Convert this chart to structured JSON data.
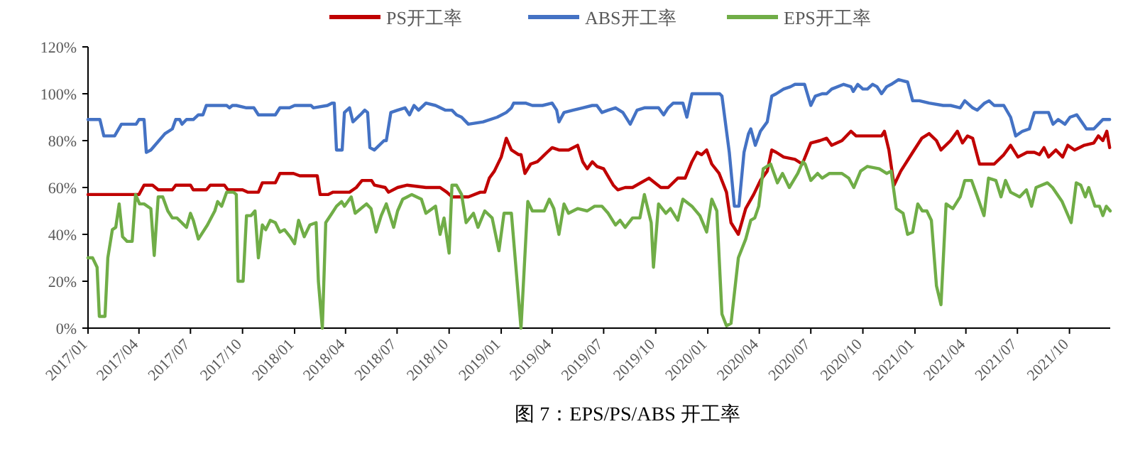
{
  "chart_data": {
    "type": "line",
    "title": "图 7：EPS/PS/ABS 开工率",
    "legend": "top",
    "xlim": [
      "2017-01-01",
      "2021-12-12"
    ],
    "xticks": [
      {
        "value": "2017-01",
        "label": "2017/01"
      },
      {
        "value": "2017-04",
        "label": "2017/04"
      },
      {
        "value": "2017-07",
        "label": "2017/07"
      },
      {
        "value": "2017-10",
        "label": "2017/10"
      },
      {
        "value": "2018-01",
        "label": "2018/01"
      },
      {
        "value": "2018-04",
        "label": "2018/04"
      },
      {
        "value": "2018-07",
        "label": "2018/07"
      },
      {
        "value": "2018-10",
        "label": "2018/10"
      },
      {
        "value": "2019-01",
        "label": "2019/01"
      },
      {
        "value": "2019-04",
        "label": "2019/04"
      },
      {
        "value": "2019-07",
        "label": "2019/07"
      },
      {
        "value": "2019-10",
        "label": "2019/10"
      },
      {
        "value": "2020-01",
        "label": "2020/01"
      },
      {
        "value": "2020-04",
        "label": "2020/04"
      },
      {
        "value": "2020-07",
        "label": "2020/07"
      },
      {
        "value": "2020-10",
        "label": "2020/10"
      },
      {
        "value": "2021-01",
        "label": "2021/01"
      },
      {
        "value": "2021-04",
        "label": "2021/04"
      },
      {
        "value": "2021-07",
        "label": "2021/07"
      },
      {
        "value": "2021-10",
        "label": "2021/10"
      }
    ],
    "ylim": [
      0,
      120
    ],
    "yticks": [
      {
        "value": 0,
        "label": "0%"
      },
      {
        "value": 20,
        "label": "20%"
      },
      {
        "value": 40,
        "label": "40%"
      },
      {
        "value": 60,
        "label": "60%"
      },
      {
        "value": 80,
        "label": "80%"
      },
      {
        "value": 100,
        "label": "100%"
      },
      {
        "value": 120,
        "label": "120%"
      }
    ],
    "series": [
      {
        "name": "PS开工率",
        "color": "#c00000",
        "x": [
          "2017-01-01",
          "2017-04-01",
          "2017-04-10",
          "2017-04-25",
          "2017-05-05",
          "2017-05-30",
          "2017-06-05",
          "2017-07-01",
          "2017-07-06",
          "2017-07-29",
          "2017-08-05",
          "2017-08-30",
          "2017-09-05",
          "2017-10-01",
          "2017-10-10",
          "2017-10-29",
          "2017-11-05",
          "2017-11-28",
          "2017-12-06",
          "2017-12-30",
          "2018-01-10",
          "2018-02-10",
          "2018-02-15",
          "2018-03-01",
          "2018-03-10",
          "2018-04-08",
          "2018-04-20",
          "2018-04-30",
          "2018-05-17",
          "2018-05-22",
          "2018-06-10",
          "2018-06-16",
          "2018-07-02",
          "2018-07-19",
          "2018-08-21",
          "2018-09-15",
          "2018-09-27",
          "2018-10-06",
          "2018-11-04",
          "2018-11-25",
          "2018-12-03",
          "2018-12-11",
          "2018-12-20",
          "2019-01-01",
          "2019-01-10",
          "2019-01-19",
          "2019-02-01",
          "2019-02-05",
          "2019-02-12",
          "2019-02-22",
          "2019-03-06",
          "2019-03-23",
          "2019-04-01",
          "2019-04-13",
          "2019-04-30",
          "2019-05-16",
          "2019-05-25",
          "2019-06-02",
          "2019-06-11",
          "2019-06-19",
          "2019-07-01",
          "2019-07-18",
          "2019-07-26",
          "2019-08-08",
          "2019-08-21",
          "2019-09-19",
          "2019-10-10",
          "2019-10-23",
          "2019-11-09",
          "2019-11-22",
          "2019-12-04",
          "2019-12-13",
          "2019-12-21",
          "2019-12-30",
          "2020-01-08",
          "2020-01-21",
          "2020-02-03",
          "2020-02-11",
          "2020-02-24",
          "2020-03-08",
          "2020-03-22",
          "2020-04-03",
          "2020-04-15",
          "2020-04-23",
          "2020-05-01",
          "2020-05-14",
          "2020-06-03",
          "2020-06-16",
          "2020-07-01",
          "2020-07-17",
          "2020-07-29",
          "2020-08-07",
          "2020-08-25",
          "2020-09-10",
          "2020-09-19",
          "2020-10-05",
          "2020-11-03",
          "2020-11-08",
          "2020-11-16",
          "2020-11-25",
          "2020-12-07",
          "2020-12-28",
          "2021-01-13",
          "2021-01-26",
          "2021-02-08",
          "2021-02-16",
          "2021-03-05",
          "2021-03-17",
          "2021-03-26",
          "2021-04-04",
          "2021-04-13",
          "2021-04-25",
          "2021-05-08",
          "2021-05-21",
          "2021-06-07",
          "2021-06-19",
          "2021-07-02",
          "2021-07-18",
          "2021-07-31",
          "2021-08-09",
          "2021-08-17",
          "2021-08-25",
          "2021-09-07",
          "2021-09-19",
          "2021-09-28",
          "2021-10-10",
          "2021-10-27",
          "2021-11-13",
          "2021-11-21",
          "2021-11-29",
          "2021-12-06",
          "2021-12-11"
        ],
        "values": [
          57,
          57,
          61,
          61,
          59,
          59,
          61,
          61,
          59,
          59,
          61,
          61,
          59,
          59,
          58,
          58,
          62,
          62,
          66,
          66,
          65,
          65,
          57,
          57,
          58,
          58,
          60,
          63,
          63,
          61,
          60,
          58,
          60,
          61,
          60,
          60,
          58,
          56,
          56,
          58,
          58,
          64,
          67,
          73,
          81,
          76,
          74,
          74,
          66,
          70,
          71,
          75,
          77,
          76,
          76,
          78,
          71,
          68,
          71,
          69,
          68,
          61,
          59,
          60,
          60,
          64,
          60,
          60,
          64,
          64,
          71,
          75,
          74,
          76,
          70,
          66,
          58,
          45,
          40,
          51,
          57,
          63,
          67,
          76,
          75,
          73,
          72,
          70,
          79,
          80,
          81,
          78,
          80,
          84,
          82,
          82,
          82,
          84,
          76,
          61,
          67,
          75,
          81,
          83,
          80,
          76,
          80,
          84,
          79,
          82,
          81,
          70,
          70,
          70,
          74,
          78,
          73,
          75,
          75,
          74,
          77,
          73,
          76,
          73,
          78,
          76,
          78,
          79,
          82,
          80,
          84,
          77
        ]
      },
      {
        "name": "ABS开工率",
        "color": "#4472c4",
        "x": [
          "2017-01-01",
          "2017-01-22",
          "2017-01-29",
          "2017-02-17",
          "2017-03-01",
          "2017-03-27",
          "2017-04-01",
          "2017-04-10",
          "2017-04-14",
          "2017-04-22",
          "2017-05-17",
          "2017-05-30",
          "2017-06-05",
          "2017-06-12",
          "2017-06-16",
          "2017-06-24",
          "2017-07-06",
          "2017-07-15",
          "2017-07-23",
          "2017-07-29",
          "2017-09-03",
          "2017-09-08",
          "2017-09-13",
          "2017-09-20",
          "2017-10-08",
          "2017-10-21",
          "2017-10-29",
          "2017-11-28",
          "2017-12-06",
          "2017-12-23",
          "2018-01-01",
          "2018-01-30",
          "2018-02-03",
          "2018-02-28",
          "2018-03-08",
          "2018-03-12",
          "2018-03-16",
          "2018-03-26",
          "2018-03-30",
          "2018-04-08",
          "2018-04-14",
          "2018-04-27",
          "2018-05-05",
          "2018-05-10",
          "2018-05-14",
          "2018-05-22",
          "2018-06-08",
          "2018-06-12",
          "2018-06-20",
          "2018-07-02",
          "2018-07-15",
          "2018-07-23",
          "2018-07-31",
          "2018-08-08",
          "2018-08-21",
          "2018-09-07",
          "2018-09-24",
          "2018-10-06",
          "2018-10-14",
          "2018-10-23",
          "2018-11-04",
          "2018-11-30",
          "2018-12-25",
          "2019-01-10",
          "2019-01-19",
          "2019-01-23",
          "2019-02-13",
          "2019-02-25",
          "2019-03-15",
          "2019-04-01",
          "2019-04-09",
          "2019-04-13",
          "2019-04-22",
          "2019-05-08",
          "2019-05-25",
          "2019-06-11",
          "2019-06-19",
          "2019-06-28",
          "2019-07-09",
          "2019-07-22",
          "2019-08-04",
          "2019-08-17",
          "2019-08-29",
          "2019-09-11",
          "2019-10-06",
          "2019-10-15",
          "2019-10-23",
          "2019-11-01",
          "2019-11-18",
          "2019-11-25",
          "2019-12-04",
          "2020-01-22",
          "2020-01-26",
          "2020-02-08",
          "2020-02-17",
          "2020-02-25",
          "2020-03-05",
          "2020-03-13",
          "2020-03-17",
          "2020-03-25",
          "2020-04-03",
          "2020-04-15",
          "2020-04-23",
          "2020-05-01",
          "2020-05-14",
          "2020-05-26",
          "2020-06-03",
          "2020-06-20",
          "2020-07-01",
          "2020-07-09",
          "2020-07-21",
          "2020-07-29",
          "2020-08-07",
          "2020-08-28",
          "2020-09-10",
          "2020-09-14",
          "2020-09-22",
          "2020-10-01",
          "2020-10-09",
          "2020-10-18",
          "2020-10-26",
          "2020-11-03",
          "2020-11-12",
          "2020-11-20",
          "2020-12-03",
          "2020-12-19",
          "2020-12-28",
          "2021-01-09",
          "2021-01-26",
          "2021-02-20",
          "2021-03-05",
          "2021-03-22",
          "2021-03-30",
          "2021-04-13",
          "2021-04-21",
          "2021-05-04",
          "2021-05-12",
          "2021-05-21",
          "2021-06-07",
          "2021-06-19",
          "2021-06-28",
          "2021-07-10",
          "2021-07-22",
          "2021-07-31",
          "2021-08-25",
          "2021-09-02",
          "2021-09-11",
          "2021-09-23",
          "2021-10-02",
          "2021-10-14",
          "2021-10-31",
          "2021-11-13",
          "2021-11-21",
          "2021-11-29",
          "2021-12-11"
        ],
        "values": [
          89,
          89,
          82,
          82,
          87,
          87,
          89,
          89,
          75,
          76,
          83,
          85,
          89,
          89,
          87,
          89,
          89,
          91,
          91,
          95,
          95,
          94,
          95,
          95,
          94,
          94,
          91,
          91,
          94,
          94,
          95,
          95,
          94,
          95,
          96,
          96,
          76,
          76,
          92,
          94,
          88,
          91,
          93,
          92,
          77,
          76,
          80,
          80,
          92,
          93,
          94,
          91,
          95,
          93,
          96,
          95,
          93,
          93,
          91,
          90,
          87,
          88,
          90,
          92,
          94,
          96,
          96,
          95,
          95,
          96,
          93,
          88,
          92,
          93,
          94,
          95,
          95,
          92,
          93,
          94,
          92,
          87,
          93,
          94,
          94,
          91,
          94,
          96,
          96,
          90,
          100,
          100,
          99,
          75,
          52,
          52,
          75,
          83,
          85,
          78,
          84,
          88,
          99,
          100,
          102,
          103,
          104,
          104,
          95,
          99,
          100,
          100,
          102,
          104,
          103,
          101,
          104,
          102,
          102,
          104,
          103,
          100,
          103,
          104,
          106,
          105,
          97,
          97,
          96,
          95,
          95,
          94,
          97,
          94,
          93,
          96,
          97,
          95,
          95,
          90,
          82,
          84,
          85,
          92,
          92,
          87,
          89,
          87,
          90,
          91,
          85,
          85,
          87,
          89,
          89
        ]
      },
      {
        "name": "EPS开工率",
        "color": "#70ad47",
        "x": [
          "2017-01-01",
          "2017-01-09",
          "2017-01-17",
          "2017-01-21",
          "2017-01-31",
          "2017-02-05",
          "2017-02-13",
          "2017-02-19",
          "2017-02-25",
          "2017-03-03",
          "2017-03-11",
          "2017-03-20",
          "2017-03-26",
          "2017-04-02",
          "2017-04-10",
          "2017-04-22",
          "2017-04-28",
          "2017-05-05",
          "2017-05-13",
          "2017-05-22",
          "2017-05-30",
          "2017-06-07",
          "2017-06-24",
          "2017-07-01",
          "2017-07-06",
          "2017-07-15",
          "2017-07-31",
          "2017-08-13",
          "2017-08-18",
          "2017-08-25",
          "2017-09-03",
          "2017-09-15",
          "2017-09-20",
          "2017-09-23",
          "2017-10-02",
          "2017-10-08",
          "2017-10-16",
          "2017-10-23",
          "2017-10-29",
          "2017-11-05",
          "2017-11-11",
          "2017-11-19",
          "2017-11-28",
          "2017-12-06",
          "2017-12-14",
          "2017-12-24",
          "2018-01-01",
          "2018-01-08",
          "2018-01-18",
          "2018-01-28",
          "2018-02-08",
          "2018-02-12",
          "2018-02-19",
          "2018-02-25",
          "2018-03-08",
          "2018-03-16",
          "2018-03-25",
          "2018-03-30",
          "2018-04-11",
          "2018-04-18",
          "2018-05-08",
          "2018-05-16",
          "2018-05-25",
          "2018-06-03",
          "2018-06-12",
          "2018-06-25",
          "2018-07-02",
          "2018-07-11",
          "2018-07-19",
          "2018-07-27",
          "2018-08-13",
          "2018-08-21",
          "2018-09-07",
          "2018-09-15",
          "2018-09-22",
          "2018-10-01",
          "2018-10-06",
          "2018-10-14",
          "2018-10-23",
          "2018-10-31",
          "2018-11-13",
          "2018-11-21",
          "2018-12-03",
          "2018-12-16",
          "2018-12-28",
          "2019-01-06",
          "2019-01-19",
          "2019-02-05",
          "2019-02-17",
          "2019-02-25",
          "2019-03-18",
          "2019-03-27",
          "2019-04-04",
          "2019-04-13",
          "2019-04-22",
          "2019-04-30",
          "2019-05-16",
          "2019-06-02",
          "2019-06-15",
          "2019-06-28",
          "2019-07-09",
          "2019-07-22",
          "2019-07-30",
          "2019-08-08",
          "2019-08-21",
          "2019-09-03",
          "2019-09-11",
          "2019-09-23",
          "2019-09-27",
          "2019-10-06",
          "2019-10-19",
          "2019-10-27",
          "2019-11-09",
          "2019-11-18",
          "2019-12-04",
          "2019-12-18",
          "2019-12-30",
          "2020-01-08",
          "2020-01-17",
          "2020-01-26",
          "2020-02-03",
          "2020-02-11",
          "2020-02-24",
          "2020-03-08",
          "2020-03-17",
          "2020-03-24",
          "2020-03-31",
          "2020-04-08",
          "2020-04-21",
          "2020-05-03",
          "2020-05-12",
          "2020-05-24",
          "2020-06-08",
          "2020-06-17",
          "2020-06-21",
          "2020-07-01",
          "2020-07-13",
          "2020-07-21",
          "2020-08-03",
          "2020-08-25",
          "2020-09-06",
          "2020-09-15",
          "2020-09-27",
          "2020-10-09",
          "2020-10-30",
          "2020-11-12",
          "2020-11-20",
          "2020-11-29",
          "2020-12-11",
          "2020-12-19",
          "2020-12-28",
          "2021-01-06",
          "2021-01-14",
          "2021-01-22",
          "2021-01-30",
          "2021-02-08",
          "2021-02-16",
          "2021-02-25",
          "2021-03-09",
          "2021-03-22",
          "2021-03-30",
          "2021-04-11",
          "2021-04-20",
          "2021-05-03",
          "2021-05-11",
          "2021-05-24",
          "2021-06-02",
          "2021-06-10",
          "2021-06-19",
          "2021-07-05",
          "2021-07-17",
          "2021-07-26",
          "2021-08-03",
          "2021-08-23",
          "2021-09-01",
          "2021-09-18",
          "2021-10-04",
          "2021-10-13",
          "2021-10-21",
          "2021-10-29",
          "2021-11-04",
          "2021-11-15",
          "2021-11-23",
          "2021-11-29",
          "2021-12-05",
          "2021-12-12"
        ],
        "values": [
          30,
          30,
          26,
          5,
          5,
          30,
          42,
          43,
          53,
          39,
          37,
          37,
          57,
          53,
          53,
          51,
          31,
          56,
          56,
          50,
          47,
          47,
          43,
          49,
          46,
          38,
          44,
          50,
          54,
          52,
          58,
          58,
          57,
          20,
          20,
          48,
          48,
          50,
          30,
          44,
          42,
          46,
          45,
          41,
          42,
          39,
          36,
          46,
          39,
          44,
          45,
          20,
          0,
          45,
          49,
          52,
          54,
          52,
          56,
          49,
          53,
          51,
          41,
          48,
          53,
          43,
          50,
          55,
          56,
          57,
          55,
          49,
          52,
          40,
          47,
          32,
          61,
          61,
          57,
          45,
          49,
          43,
          50,
          47,
          33,
          49,
          49,
          0,
          54,
          50,
          50,
          55,
          51,
          40,
          53,
          49,
          51,
          50,
          52,
          52,
          49,
          44,
          46,
          43,
          47,
          47,
          57,
          45,
          26,
          53,
          49,
          51,
          46,
          55,
          52,
          48,
          41,
          55,
          50,
          6,
          1,
          2,
          30,
          38,
          46,
          47,
          52,
          68,
          70,
          62,
          66,
          60,
          66,
          71,
          70,
          63,
          66,
          64,
          66,
          66,
          64,
          60,
          67,
          69,
          68,
          66,
          67,
          51,
          49,
          40,
          41,
          53,
          50,
          50,
          46,
          18,
          10,
          53,
          51,
          56,
          63,
          63,
          57,
          48,
          64,
          63,
          56,
          63,
          58,
          56,
          59,
          52,
          60,
          62,
          60,
          54,
          45,
          62,
          61,
          56,
          60,
          52,
          52,
          48,
          52,
          50
        ]
      }
    ]
  }
}
